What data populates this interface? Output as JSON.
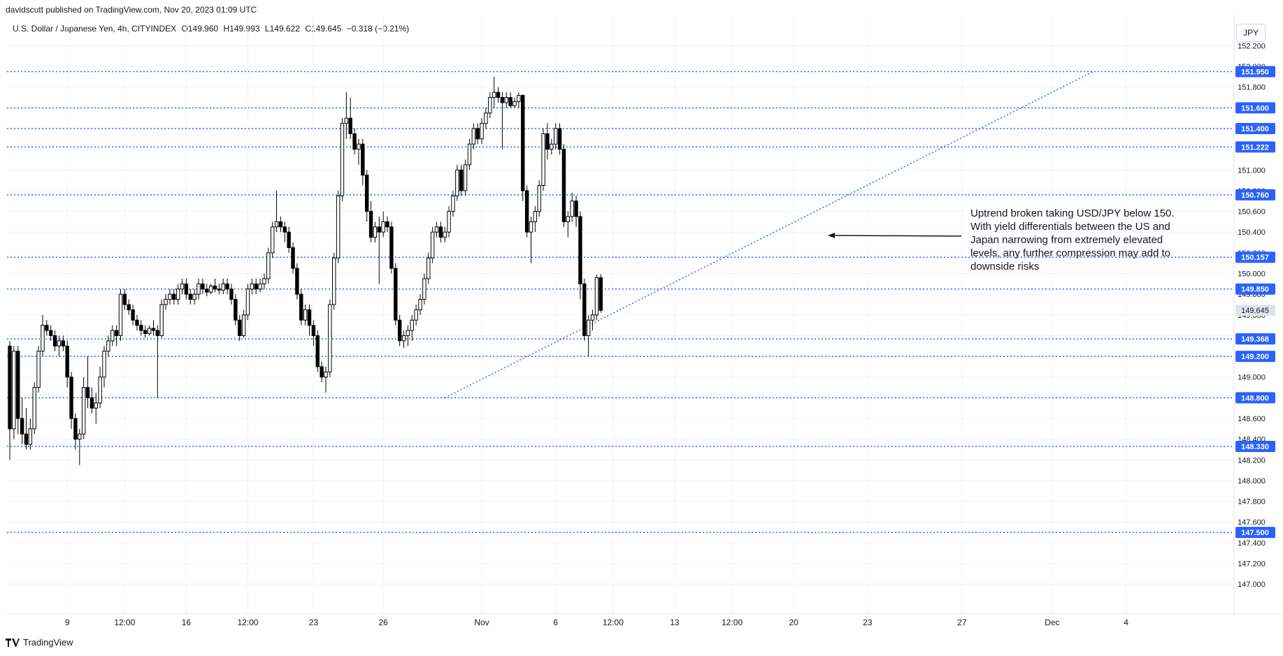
{
  "header": {
    "attribution": "davidscutt published on TradingView.com, Nov 20, 2023 01:09 UTC",
    "symbol": "U.S. Dollar / Japanese Yen, 4h, CITYINDEX",
    "open": "O149.960",
    "high": "H149.993",
    "low": "L149.622",
    "close": "C149.645",
    "change": "−0.318 (−0.21%)",
    "currency_button": "JPY"
  },
  "footer": {
    "brand": "TradingView"
  },
  "annotation": {
    "text": "Uptrend broken taking USD/JPY below 150. With yield differentials between the US and Japan narrowing from extremely elevated levels, any further compression may add to downside risks"
  },
  "colors": {
    "level": "#2962ff",
    "badge": "#2962ff",
    "candle_up": "#ffffff",
    "candle_down": "#000000",
    "wick": "#000000"
  },
  "chart_data": {
    "type": "candlestick",
    "y_range": [
      146.9,
      152.25
    ],
    "y_ticks": [
      147.0,
      147.2,
      147.4,
      147.6,
      147.8,
      148.0,
      148.2,
      148.4,
      148.6,
      148.8,
      149.0,
      149.2,
      149.4,
      149.6,
      149.8,
      150.0,
      150.2,
      150.4,
      150.6,
      150.8,
      151.0,
      151.2,
      151.4,
      151.6,
      151.8,
      152.0,
      152.2
    ],
    "x_ticks": [
      {
        "label": "9",
        "bar": 14
      },
      {
        "label": "12:00",
        "bar": 28
      },
      {
        "label": "16",
        "bar": 43
      },
      {
        "label": "12:00",
        "bar": 58
      },
      {
        "label": "23",
        "bar": 74
      },
      {
        "label": "26",
        "bar": 91
      },
      {
        "label": "Nov",
        "bar": 115
      },
      {
        "label": "6",
        "bar": 133
      },
      {
        "label": "12:00",
        "bar": 147
      },
      {
        "label": "13",
        "bar": 162
      },
      {
        "label": "12:00",
        "bar": 176
      },
      {
        "label": "20",
        "bar": 191
      },
      {
        "label": "23",
        "bar": 209
      },
      {
        "label": "27",
        "bar": 232
      },
      {
        "label": "Dec",
        "bar": 254
      },
      {
        "label": "4",
        "bar": 272
      }
    ],
    "current_price": 149.645,
    "horizontal_levels": [
      151.95,
      151.6,
      151.4,
      151.222,
      150.76,
      150.157,
      149.85,
      149.368,
      149.2,
      148.8,
      148.33,
      147.5
    ],
    "trendline": {
      "from": {
        "bar": 106,
        "price": 148.8
      },
      "to": {
        "bar": 264,
        "price": 151.95
      }
    },
    "candles": [
      [
        149.3,
        149.35,
        148.2,
        148.5
      ],
      [
        148.5,
        149.3,
        148.4,
        149.25
      ],
      [
        149.25,
        149.3,
        148.45,
        148.6
      ],
      [
        148.6,
        148.8,
        148.35,
        148.45
      ],
      [
        148.45,
        148.7,
        148.3,
        148.35
      ],
      [
        148.35,
        148.6,
        148.3,
        148.5
      ],
      [
        148.5,
        148.95,
        148.45,
        148.9
      ],
      [
        148.9,
        149.3,
        148.85,
        149.25
      ],
      [
        149.25,
        149.6,
        149.2,
        149.5
      ],
      [
        149.5,
        149.55,
        149.4,
        149.45
      ],
      [
        149.45,
        149.5,
        149.35,
        149.4
      ],
      [
        149.4,
        149.45,
        149.25,
        149.3
      ],
      [
        149.3,
        149.4,
        149.2,
        149.35
      ],
      [
        149.35,
        149.4,
        149.25,
        149.3
      ],
      [
        149.3,
        149.35,
        148.9,
        149.0
      ],
      [
        149.0,
        149.05,
        148.5,
        148.6
      ],
      [
        148.6,
        148.65,
        148.3,
        148.4
      ],
      [
        148.4,
        148.5,
        148.15,
        148.45
      ],
      [
        148.45,
        149.0,
        148.4,
        148.9
      ],
      [
        148.9,
        149.2,
        148.7,
        148.8
      ],
      [
        148.8,
        148.9,
        148.65,
        148.7
      ],
      [
        148.7,
        148.85,
        148.55,
        148.75
      ],
      [
        148.75,
        149.1,
        148.7,
        149.0
      ],
      [
        149.0,
        149.3,
        148.9,
        149.25
      ],
      [
        149.25,
        149.4,
        149.2,
        149.35
      ],
      [
        149.35,
        149.5,
        149.3,
        149.45
      ],
      [
        149.45,
        149.5,
        149.3,
        149.4
      ],
      [
        149.4,
        149.85,
        149.35,
        149.8
      ],
      [
        149.8,
        149.85,
        149.65,
        149.7
      ],
      [
        149.7,
        149.75,
        149.6,
        149.65
      ],
      [
        149.65,
        149.7,
        149.5,
        149.55
      ],
      [
        149.55,
        149.6,
        149.45,
        149.5
      ],
      [
        149.5,
        149.55,
        149.4,
        149.45
      ],
      [
        149.45,
        149.5,
        149.38,
        149.42
      ],
      [
        149.42,
        149.5,
        149.4,
        149.47
      ],
      [
        149.47,
        149.55,
        149.4,
        149.45
      ],
      [
        149.45,
        149.5,
        148.8,
        149.4
      ],
      [
        149.4,
        149.75,
        149.38,
        149.7
      ],
      [
        149.7,
        149.8,
        149.65,
        149.75
      ],
      [
        149.75,
        149.85,
        149.7,
        149.8
      ],
      [
        149.8,
        149.85,
        149.7,
        149.75
      ],
      [
        149.75,
        149.9,
        149.7,
        149.85
      ],
      [
        149.85,
        149.95,
        149.8,
        149.9
      ],
      [
        149.9,
        149.95,
        149.75,
        149.8
      ],
      [
        149.8,
        149.85,
        149.7,
        149.75
      ],
      [
        149.75,
        149.85,
        149.7,
        149.8
      ],
      [
        149.8,
        149.95,
        149.75,
        149.9
      ],
      [
        149.9,
        149.95,
        149.8,
        149.85
      ],
      [
        149.85,
        149.9,
        149.78,
        149.82
      ],
      [
        149.82,
        149.9,
        149.8,
        149.88
      ],
      [
        149.88,
        149.95,
        149.82,
        149.85
      ],
      [
        149.85,
        149.9,
        149.8,
        149.84
      ],
      [
        149.84,
        149.95,
        149.8,
        149.9
      ],
      [
        149.9,
        149.95,
        149.8,
        149.85
      ],
      [
        149.85,
        149.9,
        149.7,
        149.75
      ],
      [
        149.75,
        149.8,
        149.5,
        149.55
      ],
      [
        149.55,
        149.6,
        149.35,
        149.4
      ],
      [
        149.4,
        149.65,
        149.38,
        149.6
      ],
      [
        149.6,
        149.9,
        149.55,
        149.85
      ],
      [
        149.85,
        149.95,
        149.8,
        149.9
      ],
      [
        149.9,
        149.95,
        149.8,
        149.85
      ],
      [
        149.85,
        149.95,
        149.82,
        149.9
      ],
      [
        149.9,
        150.0,
        149.85,
        149.95
      ],
      [
        149.95,
        150.25,
        149.9,
        150.2
      ],
      [
        150.2,
        150.5,
        150.15,
        150.45
      ],
      [
        150.45,
        150.8,
        150.4,
        150.5
      ],
      [
        150.5,
        150.55,
        150.4,
        150.45
      ],
      [
        150.45,
        150.5,
        150.3,
        150.4
      ],
      [
        150.4,
        150.45,
        150.2,
        150.25
      ],
      [
        150.25,
        150.3,
        150.0,
        150.05
      ],
      [
        150.05,
        150.1,
        149.75,
        149.8
      ],
      [
        149.8,
        149.85,
        149.5,
        149.55
      ],
      [
        149.55,
        149.7,
        149.5,
        149.65
      ],
      [
        149.65,
        149.7,
        149.4,
        149.5
      ],
      [
        149.5,
        149.55,
        149.3,
        149.4
      ],
      [
        149.4,
        149.45,
        149.05,
        149.1
      ],
      [
        149.1,
        149.15,
        148.95,
        149.0
      ],
      [
        149.0,
        149.1,
        148.85,
        149.05
      ],
      [
        149.05,
        149.75,
        149.0,
        149.7
      ],
      [
        149.7,
        150.2,
        149.65,
        150.15
      ],
      [
        150.15,
        150.8,
        150.1,
        150.75
      ],
      [
        150.75,
        151.5,
        150.7,
        151.45
      ],
      [
        151.45,
        151.75,
        151.3,
        151.5
      ],
      [
        151.5,
        151.7,
        151.3,
        151.35
      ],
      [
        151.35,
        151.4,
        151.15,
        151.2
      ],
      [
        151.2,
        151.3,
        151.05,
        151.25
      ],
      [
        151.25,
        151.3,
        150.85,
        150.95
      ],
      [
        150.95,
        151.0,
        150.5,
        150.6
      ],
      [
        150.6,
        150.7,
        150.3,
        150.35
      ],
      [
        150.35,
        150.5,
        150.3,
        150.45
      ],
      [
        150.45,
        150.55,
        149.9,
        150.4
      ],
      [
        150.4,
        150.6,
        150.35,
        150.5
      ],
      [
        150.5,
        150.55,
        150.4,
        150.45
      ],
      [
        150.45,
        150.5,
        150.0,
        150.05
      ],
      [
        150.05,
        150.1,
        149.5,
        149.55
      ],
      [
        149.55,
        149.6,
        149.3,
        149.35
      ],
      [
        149.35,
        149.45,
        149.28,
        149.4
      ],
      [
        149.4,
        149.5,
        149.3,
        149.45
      ],
      [
        149.45,
        149.6,
        149.35,
        149.55
      ],
      [
        149.55,
        149.7,
        149.5,
        149.65
      ],
      [
        149.65,
        149.8,
        149.6,
        149.75
      ],
      [
        149.75,
        150.0,
        149.7,
        149.95
      ],
      [
        149.95,
        150.2,
        149.9,
        150.15
      ],
      [
        150.15,
        150.45,
        150.1,
        150.4
      ],
      [
        150.4,
        150.5,
        150.35,
        150.45
      ],
      [
        150.45,
        150.5,
        150.3,
        150.35
      ],
      [
        150.35,
        150.45,
        150.3,
        150.4
      ],
      [
        150.4,
        150.65,
        150.35,
        150.6
      ],
      [
        150.6,
        150.8,
        150.55,
        150.75
      ],
      [
        150.75,
        151.05,
        150.7,
        151.0
      ],
      [
        151.0,
        151.05,
        150.75,
        150.8
      ],
      [
        150.8,
        151.1,
        150.75,
        151.05
      ],
      [
        151.05,
        151.3,
        151.0,
        151.25
      ],
      [
        151.25,
        151.45,
        151.2,
        151.4
      ],
      [
        151.4,
        151.45,
        151.25,
        151.3
      ],
      [
        151.3,
        151.5,
        151.25,
        151.45
      ],
      [
        151.45,
        151.6,
        151.4,
        151.55
      ],
      [
        151.55,
        151.75,
        151.5,
        151.7
      ],
      [
        151.7,
        151.9,
        151.6,
        151.75
      ],
      [
        151.75,
        151.8,
        151.65,
        151.7
      ],
      [
        151.7,
        151.75,
        151.2,
        151.65
      ],
      [
        151.65,
        151.75,
        151.6,
        151.7
      ],
      [
        151.7,
        151.75,
        151.6,
        151.62
      ],
      [
        151.62,
        151.7,
        151.6,
        151.66
      ],
      [
        151.66,
        151.75,
        151.6,
        151.72
      ],
      [
        151.72,
        151.73,
        150.7,
        150.8
      ],
      [
        150.8,
        150.85,
        150.35,
        150.4
      ],
      [
        150.4,
        150.55,
        150.1,
        150.5
      ],
      [
        150.5,
        150.65,
        150.4,
        150.6
      ],
      [
        150.6,
        150.9,
        150.55,
        150.85
      ],
      [
        150.85,
        151.4,
        150.8,
        151.35
      ],
      [
        151.35,
        151.45,
        151.1,
        151.2
      ],
      [
        151.2,
        151.3,
        151.15,
        151.25
      ],
      [
        151.25,
        151.45,
        151.2,
        151.4
      ],
      [
        151.4,
        151.45,
        151.15,
        151.2
      ],
      [
        151.2,
        151.25,
        150.45,
        150.5
      ],
      [
        150.5,
        150.6,
        150.35,
        150.55
      ],
      [
        150.55,
        150.78,
        150.5,
        150.7
      ],
      [
        150.7,
        150.75,
        150.45,
        150.55
      ],
      [
        150.55,
        150.6,
        149.75,
        149.9
      ],
      [
        149.9,
        149.95,
        149.35,
        149.4
      ],
      [
        149.4,
        149.6,
        149.2,
        149.55
      ],
      [
        149.55,
        149.65,
        149.45,
        149.6
      ],
      [
        149.6,
        149.99,
        149.55,
        149.96
      ],
      [
        149.96,
        149.993,
        149.622,
        149.645
      ]
    ]
  }
}
